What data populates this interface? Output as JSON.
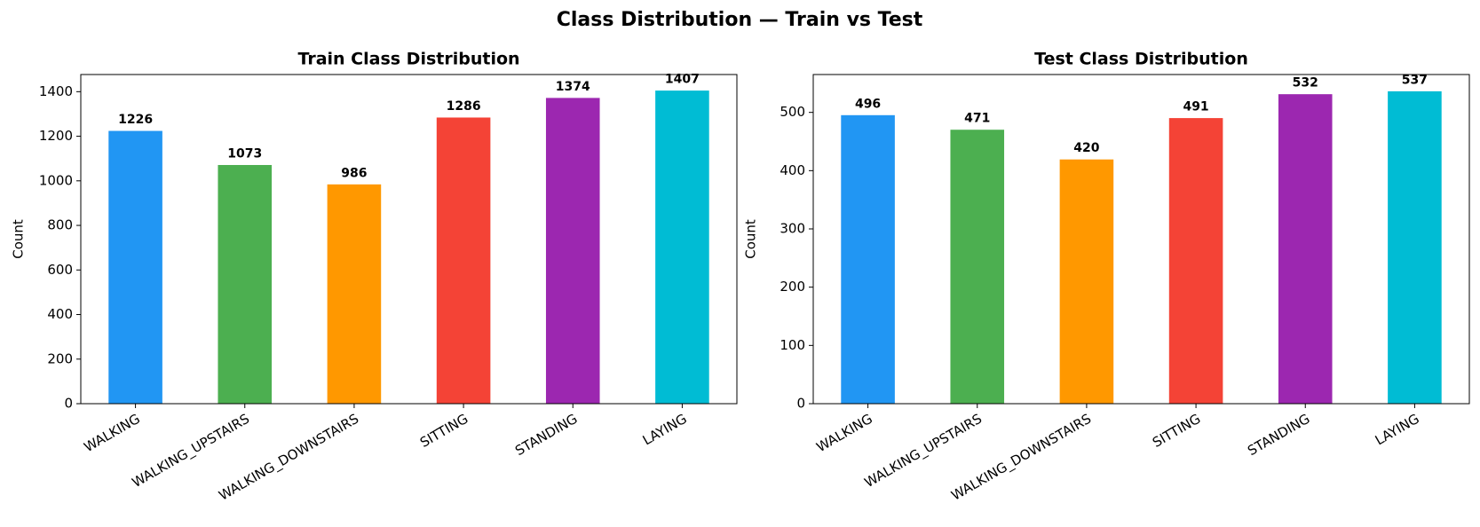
{
  "title": "Class Distribution — Train vs Test",
  "chart_data": [
    {
      "type": "bar",
      "title": "Train Class Distribution",
      "y_label": "Count",
      "categories": [
        "WALKING",
        "WALKING_UPSTAIRS",
        "WALKING_DOWNSTAIRS",
        "SITTING",
        "STANDING",
        "LAYING"
      ],
      "values": [
        1226,
        1073,
        986,
        1286,
        1374,
        1407
      ],
      "colors": [
        "#2196f3",
        "#4caf50",
        "#ff9800",
        "#f44336",
        "#9c27b0",
        "#00bcd4"
      ],
      "ylim": [
        0,
        1477
      ],
      "yticks": [
        0,
        200,
        400,
        600,
        800,
        1000,
        1200,
        1400
      ]
    },
    {
      "type": "bar",
      "title": "Test Class Distribution",
      "y_label": "Count",
      "categories": [
        "WALKING",
        "WALKING_UPSTAIRS",
        "WALKING_DOWNSTAIRS",
        "SITTING",
        "STANDING",
        "LAYING"
      ],
      "values": [
        496,
        471,
        420,
        491,
        532,
        537
      ],
      "colors": [
        "#2196f3",
        "#4caf50",
        "#ff9800",
        "#f44336",
        "#9c27b0",
        "#00bcd4"
      ],
      "ylim": [
        0,
        565
      ],
      "yticks": [
        0,
        100,
        200,
        300,
        400,
        500
      ]
    }
  ]
}
